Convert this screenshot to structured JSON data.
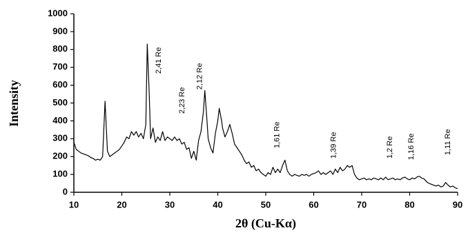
{
  "chart_data": {
    "type": "line",
    "xlabel": "2θ (Cu-Kα)",
    "ylabel": "Intensity",
    "xlim": [
      10,
      90
    ],
    "xticks": [
      10,
      20,
      30,
      40,
      50,
      60,
      70,
      80,
      90
    ],
    "ylim": [
      0,
      1000
    ],
    "yticks": [
      0,
      100,
      200,
      300,
      400,
      500,
      600,
      700,
      800,
      900,
      1000
    ],
    "x": [
      10,
      10.5,
      11,
      11.5,
      12,
      12.5,
      13,
      13.5,
      14,
      14.5,
      15,
      15.5,
      16,
      16.5,
      17,
      17.5,
      18,
      18.5,
      19,
      19.5,
      20,
      20.5,
      21,
      21.5,
      22,
      22.5,
      23,
      23.5,
      24,
      24.5,
      25,
      25.3,
      25.7,
      26,
      26.5,
      27,
      27.5,
      28,
      28.5,
      29,
      29.5,
      30,
      30.5,
      31,
      31.5,
      32,
      32.5,
      33,
      33.5,
      34,
      34.5,
      35,
      35.5,
      36,
      36.5,
      37,
      37.3,
      37.7,
      38,
      38.5,
      39,
      39.5,
      40,
      40.3,
      40.8,
      41,
      41.5,
      42,
      42.5,
      43,
      43.5,
      44,
      44.5,
      45,
      45.5,
      46,
      46.5,
      47,
      47.5,
      48,
      48.5,
      49,
      49.5,
      50,
      50.5,
      51,
      51.5,
      52,
      52.5,
      53,
      53.5,
      54,
      54.5,
      55,
      55.5,
      56,
      56.5,
      57,
      57.5,
      58,
      58.5,
      59,
      59.5,
      60,
      60.5,
      61,
      61.5,
      62,
      62.5,
      63,
      63.5,
      64,
      64.5,
      65,
      65.5,
      66,
      66.5,
      67,
      67.5,
      68,
      68.5,
      69,
      69.5,
      70,
      70.5,
      71,
      71.5,
      72,
      72.5,
      73,
      73.5,
      74,
      74.5,
      75,
      75.5,
      76,
      76.5,
      77,
      77.5,
      78,
      78.5,
      79,
      79.5,
      80,
      80.5,
      81,
      81.5,
      82,
      82.5,
      83,
      83.5,
      84,
      84.5,
      85,
      85.5,
      86,
      86.5,
      87,
      87.5,
      88,
      88.5,
      89,
      89.5,
      90
    ],
    "series": [
      {
        "color": "#000000",
        "values": [
          280,
          240,
          230,
          220,
          215,
          210,
          205,
          195,
          190,
          180,
          185,
          180,
          200,
          510,
          230,
          200,
          210,
          220,
          230,
          240,
          260,
          280,
          310,
          300,
          340,
          320,
          340,
          310,
          330,
          300,
          380,
          830,
          560,
          300,
          360,
          280,
          310,
          290,
          340,
          290,
          310,
          300,
          290,
          310,
          290,
          300,
          270,
          280,
          240,
          250,
          190,
          230,
          180,
          290,
          340,
          450,
          570,
          420,
          300,
          250,
          220,
          330,
          400,
          470,
          400,
          360,
          310,
          340,
          380,
          330,
          270,
          250,
          230,
          210,
          180,
          160,
          170,
          140,
          150,
          120,
          130,
          110,
          100,
          90,
          110,
          100,
          140,
          110,
          130,
          110,
          150,
          180,
          120,
          100,
          90,
          100,
          95,
          90,
          100,
          95,
          100,
          90,
          100,
          105,
          110,
          120,
          100,
          110,
          100,
          110,
          120,
          100,
          130,
          110,
          140,
          120,
          130,
          150,
          140,
          150,
          100,
          80,
          70,
          75,
          80,
          70,
          75,
          70,
          80,
          75,
          70,
          80,
          70,
          85,
          70,
          75,
          80,
          70,
          75,
          70,
          80,
          85,
          75,
          70,
          80,
          75,
          85,
          90,
          80,
          75,
          60,
          50,
          45,
          40,
          35,
          40,
          30,
          35,
          55,
          40,
          30,
          35,
          25,
          20
        ]
      }
    ],
    "annotations": [
      {
        "text": "2,41 Re",
        "x": 27.7,
        "y": 664
      },
      {
        "text": "2,23 Re",
        "x": 32.6,
        "y": 440
      },
      {
        "text": "2,12 Re",
        "x": 36.3,
        "y": 575
      },
      {
        "text": "1,61 Re",
        "x": 52.4,
        "y": 247
      },
      {
        "text": "1,39 Re",
        "x": 64.2,
        "y": 189
      },
      {
        "text": "1,2 Re",
        "x": 75.9,
        "y": 189
      },
      {
        "text": "1,16 Re",
        "x": 80.4,
        "y": 181
      },
      {
        "text": "1,11 Re",
        "x": 88,
        "y": 208
      }
    ]
  }
}
